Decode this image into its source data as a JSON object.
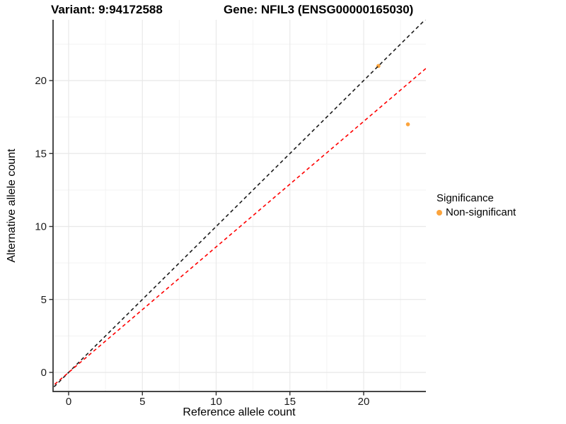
{
  "header": {
    "variant_title": "Variant: 9:94172588",
    "gene_title": "Gene: NFIL3 (ENSG00000165030)"
  },
  "axes": {
    "x": {
      "label": "Reference allele count"
    },
    "y": {
      "label": "Alternative allele count"
    }
  },
  "legend": {
    "title": "Significance",
    "items": [
      {
        "label": "Non-significant",
        "color": "#FCA43C",
        "marker": "point-icon"
      }
    ]
  },
  "chart_data": {
    "type": "scatter",
    "title": "Variant: 9:94172588 | Gene: NFIL3 (ENSG00000165030)",
    "xlabel": "Reference allele count",
    "ylabel": "Alternative allele count",
    "xlim": [
      -1.1,
      24.2
    ],
    "ylim": [
      -1.3,
      24.2
    ],
    "x_ticks": [
      0,
      5,
      10,
      15,
      20
    ],
    "y_ticks": [
      0,
      5,
      10,
      15,
      20
    ],
    "grid": "major+minor",
    "legend_position": "right",
    "series": [
      {
        "name": "Non-significant",
        "color": "#FCA43C",
        "points": [
          {
            "x": 21,
            "y": 21
          },
          {
            "x": 23,
            "y": 17
          }
        ]
      }
    ],
    "lines": [
      {
        "name": "identity-line",
        "slope": 1,
        "intercept": 0,
        "color": "#1a1a1a",
        "style": "dashed"
      },
      {
        "name": "allelic-ratio-line",
        "slope": 0.86,
        "intercept": 0,
        "color": "#FF0000",
        "style": "dashed"
      }
    ]
  },
  "colors": {
    "background": "#FFFFFF",
    "grid_major": "#E8E8E8",
    "grid_minor": "#F3F3F3",
    "axis_line": "#2B2B2B",
    "tick_text": "#1a1a1a",
    "point": "#FCA43C"
  }
}
